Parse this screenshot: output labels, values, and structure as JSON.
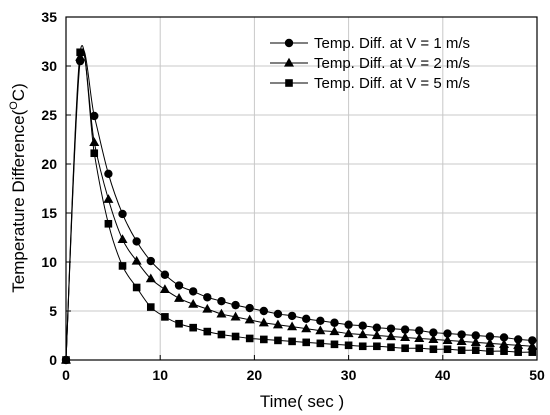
{
  "chart_data": {
    "type": "line",
    "title": "",
    "xlabel": "Time( sec )",
    "ylabel_main": "Temperature Difference(",
    "ylabel_sup": "O",
    "ylabel_unit": "C)",
    "xlim": [
      0,
      50
    ],
    "ylim": [
      0,
      35
    ],
    "xticks": [
      0,
      10,
      20,
      30,
      40,
      50
    ],
    "yticks": [
      0,
      5,
      10,
      15,
      20,
      25,
      30,
      35
    ],
    "grid": true,
    "legend_position": "top-right",
    "series": [
      {
        "name": "Temp. Diff. at V = 1 m/s",
        "marker": "circle",
        "x": [
          0,
          1.5,
          3,
          4.5,
          6,
          7.5,
          9,
          10.5,
          12,
          13.5,
          15,
          16.5,
          18,
          19.5,
          21,
          22.5,
          24,
          25.5,
          27,
          28.5,
          30,
          31.5,
          33,
          34.5,
          36,
          37.5,
          39,
          40.5,
          42,
          43.5,
          45,
          46.5,
          48,
          49.5
        ],
        "y": [
          0,
          30.5,
          24.9,
          19.0,
          14.9,
          12.1,
          10.1,
          8.7,
          7.6,
          7.0,
          6.4,
          6.0,
          5.6,
          5.3,
          5.0,
          4.7,
          4.5,
          4.2,
          4.0,
          3.8,
          3.6,
          3.5,
          3.3,
          3.2,
          3.1,
          3.0,
          2.8,
          2.7,
          2.6,
          2.5,
          2.4,
          2.3,
          2.1,
          2.0
        ]
      },
      {
        "name": "Temp. Diff. at V = 2 m/s",
        "marker": "triangle",
        "x": [
          0,
          1.5,
          3,
          4.5,
          6,
          7.5,
          9,
          10.5,
          12,
          13.5,
          15,
          16.5,
          18,
          19.5,
          21,
          22.5,
          24,
          25.5,
          27,
          28.5,
          30,
          31.5,
          33,
          34.5,
          36,
          37.5,
          39,
          40.5,
          42,
          43.5,
          45,
          46.5,
          48,
          49.5
        ],
        "y": [
          0,
          30.9,
          22.2,
          16.4,
          12.3,
          10.1,
          8.3,
          7.2,
          6.3,
          5.7,
          5.2,
          4.7,
          4.4,
          4.1,
          3.8,
          3.6,
          3.4,
          3.2,
          3.0,
          2.9,
          2.7,
          2.6,
          2.5,
          2.4,
          2.3,
          2.2,
          2.1,
          2.0,
          1.9,
          1.8,
          1.7,
          1.6,
          1.5,
          1.4
        ]
      },
      {
        "name": "Temp. Diff. at V = 5 m/s",
        "marker": "square",
        "x": [
          0,
          1.5,
          3,
          4.5,
          6,
          7.5,
          9,
          10.5,
          12,
          13.5,
          15,
          16.5,
          18,
          19.5,
          21,
          22.5,
          24,
          25.5,
          27,
          28.5,
          30,
          31.5,
          33,
          34.5,
          36,
          37.5,
          39,
          40.5,
          42,
          43.5,
          45,
          46.5,
          48,
          49.5
        ],
        "y": [
          0,
          31.4,
          21.1,
          13.9,
          9.6,
          7.4,
          5.4,
          4.4,
          3.7,
          3.3,
          2.9,
          2.6,
          2.4,
          2.2,
          2.1,
          2.0,
          1.9,
          1.8,
          1.7,
          1.6,
          1.5,
          1.4,
          1.4,
          1.3,
          1.2,
          1.2,
          1.1,
          1.1,
          1.0,
          1.0,
          0.9,
          0.9,
          0.8,
          0.8
        ]
      }
    ]
  }
}
